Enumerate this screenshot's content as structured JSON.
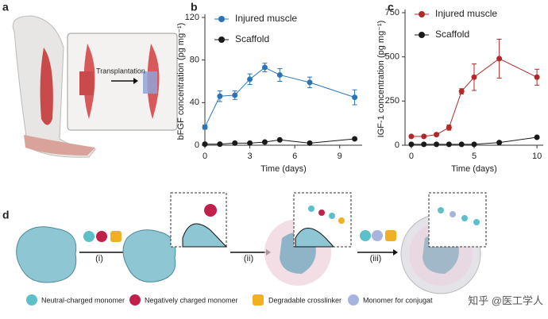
{
  "panel_labels": [
    "a",
    "b",
    "c",
    "d"
  ],
  "panel_a": {
    "label": "Transplantation"
  },
  "chart_data": [
    {
      "type": "line",
      "y_label": "bFGF concentration (pg mg⁻¹)",
      "x_label": "Time (days)",
      "x": [
        0,
        1,
        2,
        3,
        4,
        5,
        7,
        10
      ],
      "xlim": [
        0,
        10.5
      ],
      "xticks": [
        0,
        3,
        6,
        9
      ],
      "ylim": [
        0,
        120
      ],
      "yticks": [
        0,
        40,
        80,
        120
      ],
      "series": [
        {
          "name": "Injured muscle",
          "color": "#2a74b8",
          "values": [
            17,
            46,
            47,
            62,
            73,
            66,
            59,
            45
          ],
          "errors": [
            2,
            5,
            4,
            5,
            4,
            6,
            5,
            7
          ]
        },
        {
          "name": "Scaffold",
          "color": "#1a1a1a",
          "values": [
            1,
            1,
            2,
            2,
            3,
            5,
            2,
            6
          ]
        }
      ]
    },
    {
      "type": "line",
      "y_label": "IGF-1 concentration (pg mg⁻¹)",
      "x_label": "Time (days)",
      "x": [
        0,
        1,
        2,
        3,
        4,
        5,
        7,
        10
      ],
      "xlim": [
        -0.5,
        10.5
      ],
      "xticks": [
        0,
        5,
        10
      ],
      "ylim": [
        0,
        750
      ],
      "yticks": [
        0,
        250,
        500,
        750
      ],
      "series": [
        {
          "name": "Injured muscle",
          "color": "#b02a2a",
          "values": [
            50,
            50,
            60,
            100,
            305,
            385,
            490,
            385
          ],
          "errors": [
            5,
            5,
            8,
            15,
            15,
            75,
            110,
            45
          ]
        },
        {
          "name": "Scaffold",
          "color": "#1a1a1a",
          "values": [
            5,
            5,
            5,
            5,
            5,
            5,
            15,
            45
          ]
        }
      ]
    }
  ],
  "panel_d": {
    "steps": [
      "(i)",
      "(ii)",
      "(iii)"
    ],
    "legend": [
      "Neutral-charged monomer",
      "Negatively charged monomer",
      "Degradable crosslinker",
      "Monomer for conjugat"
    ],
    "watermark": "知乎 @医工学人"
  }
}
